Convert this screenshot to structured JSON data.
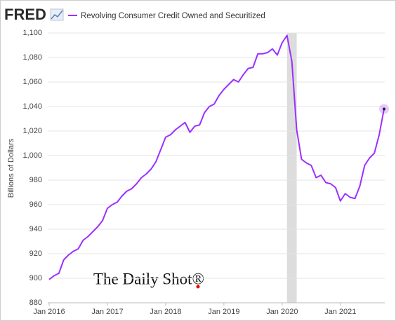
{
  "brand": "FRED",
  "watermark": "The Daily Shot®",
  "chart_data": {
    "type": "line",
    "y_label": "Billions of Dollars",
    "x": [
      "2016-01",
      "2016-02",
      "2016-03",
      "2016-04",
      "2016-05",
      "2016-06",
      "2016-07",
      "2016-08",
      "2016-09",
      "2016-10",
      "2016-11",
      "2016-12",
      "2017-01",
      "2017-02",
      "2017-03",
      "2017-04",
      "2017-05",
      "2017-06",
      "2017-07",
      "2017-08",
      "2017-09",
      "2017-10",
      "2017-11",
      "2017-12",
      "2018-01",
      "2018-02",
      "2018-03",
      "2018-04",
      "2018-05",
      "2018-06",
      "2018-07",
      "2018-08",
      "2018-09",
      "2018-10",
      "2018-11",
      "2018-12",
      "2019-01",
      "2019-02",
      "2019-03",
      "2019-04",
      "2019-05",
      "2019-06",
      "2019-07",
      "2019-08",
      "2019-09",
      "2019-10",
      "2019-11",
      "2019-12",
      "2020-01",
      "2020-02",
      "2020-03",
      "2020-04",
      "2020-05",
      "2020-06",
      "2020-07",
      "2020-08",
      "2020-09",
      "2020-10",
      "2020-11",
      "2020-12",
      "2021-01",
      "2021-02",
      "2021-03",
      "2021-04",
      "2021-05",
      "2021-06",
      "2021-07",
      "2021-08",
      "2021-09",
      "2021-10"
    ],
    "series": [
      {
        "name": "Revolving Consumer Credit Owned and Securitized",
        "color": "#9b30ff",
        "values": [
          899,
          902,
          904,
          915,
          919,
          922,
          924,
          931,
          934,
          938,
          942,
          947,
          957,
          960,
          962,
          967,
          971,
          973,
          977,
          982,
          985,
          989,
          995,
          1005,
          1015,
          1017,
          1021,
          1024,
          1027,
          1019,
          1024,
          1025,
          1035,
          1040,
          1042,
          1049,
          1054,
          1058,
          1062,
          1060,
          1066,
          1071,
          1072,
          1083,
          1083,
          1084,
          1087,
          1082,
          1092,
          1098,
          1077,
          1021,
          997,
          994,
          992,
          982,
          984,
          978,
          977,
          974,
          963,
          969,
          966,
          965,
          975,
          992,
          998,
          1002,
          1017,
          1038
        ]
      }
    ],
    "ylim": [
      880,
      1100
    ],
    "yticks": [
      880,
      900,
      920,
      940,
      960,
      980,
      {
        "value": 1000,
        "label": "1,000"
      },
      {
        "value": 1020,
        "label": "1,020"
      },
      {
        "value": 1040,
        "label": "1,040"
      },
      {
        "value": 1060,
        "label": "1,060"
      },
      {
        "value": 1080,
        "label": "1,080"
      },
      {
        "value": 1100,
        "label": "1,100"
      }
    ],
    "xticks": [
      {
        "value": "2016-01",
        "label": "Jan 2016"
      },
      {
        "value": "2017-01",
        "label": "Jan 2017"
      },
      {
        "value": "2018-01",
        "label": "Jan 2018"
      },
      {
        "value": "2019-01",
        "label": "Jan 2019"
      },
      {
        "value": "2020-01",
        "label": "Jan 2020"
      },
      {
        "value": "2021-01",
        "label": "Jan 2021"
      }
    ],
    "recession": [
      "2020-02",
      "2020-04"
    ],
    "grid": true
  }
}
